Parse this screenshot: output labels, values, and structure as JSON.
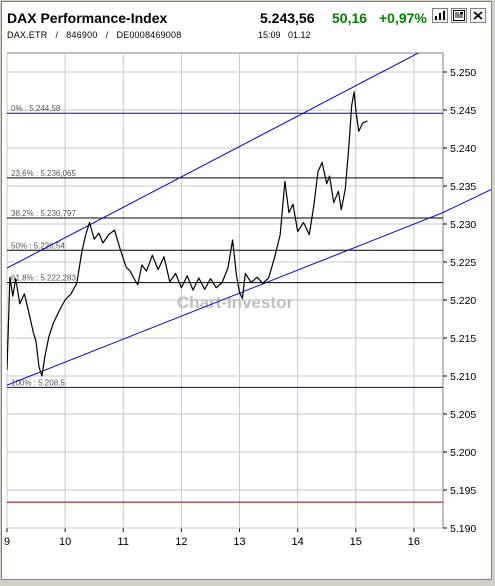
{
  "header": {
    "title": "DAX Performance-Index",
    "price": "5.243,56",
    "change": "50,16",
    "change_pct": "+0,97%",
    "subline": "DAX.ETR   /   846900   /   DE0008469008",
    "time": "15:09   01.12",
    "icons": [
      "chart-type-icon",
      "news-icon",
      "close-icon"
    ]
  },
  "watermark": "Chart-Investor",
  "colors": {
    "up": "#008000",
    "price_line": "#000000",
    "trend_line": "#0000cc",
    "fib_line": "#000000",
    "support_line": "#8b0000",
    "grid": "#c8c8c8"
  },
  "chart_data": {
    "type": "line",
    "x_ticks": [
      "9",
      "10",
      "11",
      "12",
      "13",
      "14",
      "15",
      "16"
    ],
    "y_ticks": [
      "5.250",
      "5.245",
      "5.240",
      "5.235",
      "5.230",
      "5.225",
      "5.220",
      "5.215",
      "5.210",
      "5.205",
      "5.200",
      "5.195",
      "5.190"
    ],
    "xlim": [
      9,
      16.5
    ],
    "ylim": [
      5190,
      5252.5
    ],
    "grid": true,
    "fibonacci_levels": [
      {
        "label": "0% : 5.244,58",
        "value": 5244.58
      },
      {
        "label": "23,6% : 5.236,065",
        "value": 5236.065
      },
      {
        "label": "38,2% : 5.230,797",
        "value": 5230.797
      },
      {
        "label": "50% : 5.226,54",
        "value": 5226.54
      },
      {
        "label": "61,8% : 5.222,283",
        "value": 5222.283
      },
      {
        "label": "100% : 5.208,5",
        "value": 5208.5
      }
    ],
    "support_level": 5193.4,
    "trend_channel": [
      {
        "x1": 9.0,
        "y1": 5224.2,
        "x2": 16.2,
        "y2": 5253.0
      },
      {
        "x1": 9.0,
        "y1": 5208.8,
        "x2": 16.5,
        "y2": 5231.5
      }
    ],
    "series": [
      {
        "values": [
          [
            9.0,
            5210.8
          ],
          [
            9.05,
            5223.0
          ],
          [
            9.1,
            5220.5
          ],
          [
            9.15,
            5222.8
          ],
          [
            9.22,
            5219.5
          ],
          [
            9.3,
            5220.8
          ],
          [
            9.38,
            5218.2
          ],
          [
            9.45,
            5215.8
          ],
          [
            9.5,
            5214.5
          ],
          [
            9.55,
            5211.2
          ],
          [
            9.6,
            5210.0
          ],
          [
            9.65,
            5212.5
          ],
          [
            9.72,
            5215.2
          ],
          [
            9.8,
            5217.0
          ],
          [
            9.9,
            5218.6
          ],
          [
            10.0,
            5220.0
          ],
          [
            10.1,
            5220.8
          ],
          [
            10.2,
            5222.2
          ],
          [
            10.28,
            5226.0
          ],
          [
            10.35,
            5228.5
          ],
          [
            10.42,
            5230.2
          ],
          [
            10.5,
            5228.0
          ],
          [
            10.58,
            5228.8
          ],
          [
            10.65,
            5227.5
          ],
          [
            10.75,
            5228.6
          ],
          [
            10.85,
            5229.2
          ],
          [
            10.95,
            5226.6
          ],
          [
            11.05,
            5224.3
          ],
          [
            11.12,
            5223.8
          ],
          [
            11.18,
            5222.9
          ],
          [
            11.25,
            5222.0
          ],
          [
            11.32,
            5224.6
          ],
          [
            11.4,
            5223.8
          ],
          [
            11.5,
            5225.9
          ],
          [
            11.6,
            5224.0
          ],
          [
            11.7,
            5225.7
          ],
          [
            11.8,
            5222.4
          ],
          [
            11.9,
            5223.5
          ],
          [
            12.0,
            5221.6
          ],
          [
            12.1,
            5223.2
          ],
          [
            12.2,
            5221.3
          ],
          [
            12.3,
            5222.9
          ],
          [
            12.4,
            5221.4
          ],
          [
            12.5,
            5222.8
          ],
          [
            12.6,
            5221.6
          ],
          [
            12.7,
            5222.3
          ],
          [
            12.8,
            5224.2
          ],
          [
            12.88,
            5227.9
          ],
          [
            12.95,
            5223.1
          ],
          [
            13.0,
            5221.0
          ],
          [
            13.05,
            5220.2
          ],
          [
            13.1,
            5223.5
          ],
          [
            13.2,
            5222.3
          ],
          [
            13.3,
            5223.0
          ],
          [
            13.4,
            5222.2
          ],
          [
            13.5,
            5222.9
          ],
          [
            13.6,
            5225.5
          ],
          [
            13.7,
            5228.6
          ],
          [
            13.78,
            5235.6
          ],
          [
            13.85,
            5231.5
          ],
          [
            13.92,
            5232.6
          ],
          [
            14.0,
            5229.0
          ],
          [
            14.1,
            5230.2
          ],
          [
            14.2,
            5228.6
          ],
          [
            14.28,
            5232.5
          ],
          [
            14.35,
            5236.9
          ],
          [
            14.42,
            5238.1
          ],
          [
            14.5,
            5235.3
          ],
          [
            14.55,
            5236.3
          ],
          [
            14.62,
            5232.8
          ],
          [
            14.7,
            5234.3
          ],
          [
            14.75,
            5231.9
          ],
          [
            14.82,
            5234.6
          ],
          [
            14.88,
            5240.1
          ],
          [
            14.93,
            5245.6
          ],
          [
            14.97,
            5247.4
          ],
          [
            15.0,
            5245.0
          ],
          [
            15.05,
            5242.2
          ],
          [
            15.12,
            5243.3
          ],
          [
            15.2,
            5243.56
          ]
        ]
      }
    ]
  }
}
